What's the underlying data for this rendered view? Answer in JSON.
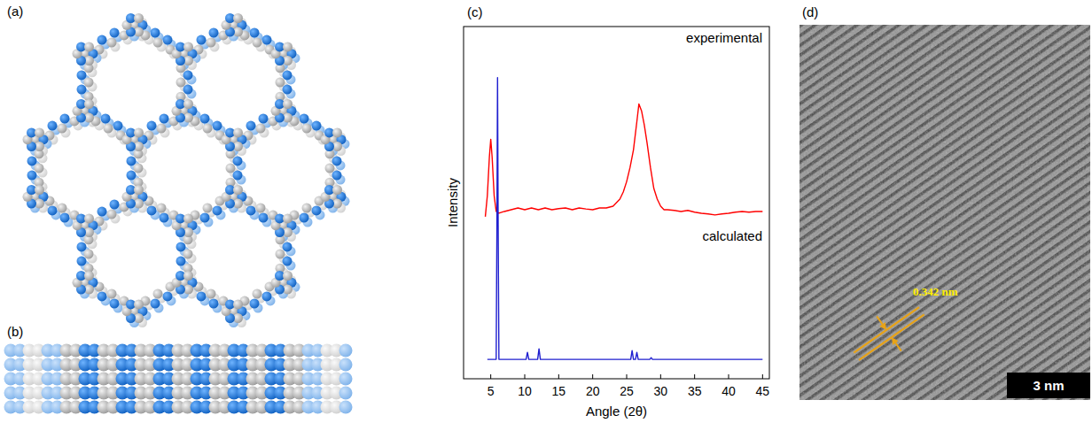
{
  "panel_labels": [
    "(a)",
    "(b)",
    "(c)",
    "(d)"
  ],
  "chart_data": {
    "type": "line",
    "x_label": "Angle (2θ)",
    "y_label": "Intensity",
    "xlim": [
      1,
      46
    ],
    "xticks": [
      5,
      10,
      15,
      20,
      25,
      30,
      35,
      40,
      45
    ],
    "ylim": [
      0,
      100
    ],
    "tick_labels": "x",
    "series": [
      {
        "name": "experimental",
        "color": "#ff0000",
        "x": [
          4.2,
          4.5,
          4.8,
          5.0,
          5.2,
          5.5,
          5.8,
          6.2,
          7,
          8,
          9,
          10,
          11,
          12,
          13,
          14,
          15,
          16,
          17,
          18,
          19,
          20,
          21,
          22,
          23,
          24,
          24.5,
          25,
          25.5,
          26,
          26.5,
          26.8,
          27.2,
          27.6,
          28,
          28.5,
          29,
          29.5,
          30,
          30.5,
          31,
          32,
          33,
          34,
          35,
          36,
          37,
          38,
          39,
          40,
          41,
          42,
          43,
          44,
          45
        ],
        "values": [
          46,
          52,
          63,
          68,
          63,
          52,
          47.5,
          47,
          47.5,
          48,
          48.5,
          48,
          48.5,
          48,
          48.5,
          48,
          48.3,
          48.5,
          48,
          48.5,
          48.2,
          48,
          48.5,
          48.5,
          49,
          51,
          53,
          56,
          60,
          65,
          73,
          78,
          76,
          72,
          67,
          60,
          54,
          51,
          49,
          48,
          48,
          47.8,
          47.5,
          47.8,
          47.3,
          47,
          46.8,
          46.5,
          46.8,
          47,
          47.3,
          47.5,
          47.3,
          47.5,
          47.5
        ]
      },
      {
        "name": "calculated",
        "color": "#1f1fd0",
        "x": [
          4.5,
          5.8,
          5.9,
          6.0,
          6.1,
          6.2,
          10.2,
          10.4,
          10.6,
          11.9,
          12.1,
          12.3,
          25.6,
          25.8,
          26.0,
          26.3,
          26.5,
          26.7,
          28.4,
          28.6,
          28.8,
          45
        ],
        "values": [
          5.5,
          5.5,
          40,
          85.5,
          40,
          5.5,
          5.5,
          7.5,
          5.5,
          5.5,
          8.5,
          5.5,
          5.5,
          8,
          5.5,
          5.5,
          7.5,
          5.5,
          5.5,
          6,
          5.5,
          5.5
        ]
      }
    ]
  },
  "tem_image": {
    "spacing_label": "0.342 nm",
    "scale_bar_label": "3 nm"
  }
}
